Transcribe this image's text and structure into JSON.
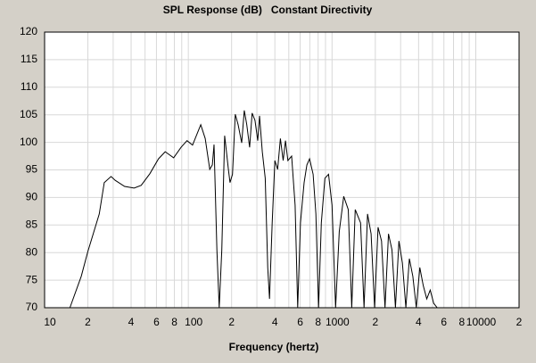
{
  "chart_data": {
    "type": "line",
    "title": "SPL Response (dB)   Constant Directivity",
    "x_label": "Frequency (hertz)",
    "x_scale": "log",
    "grid": true,
    "color": "#000000",
    "xlim": [
      10,
      20000
    ],
    "ylim": [
      70,
      120
    ],
    "yticks": [
      70,
      75,
      80,
      85,
      90,
      95,
      100,
      105,
      110,
      115,
      120
    ],
    "xticks": [
      10,
      {
        "value": 20,
        "label": "2"
      },
      {
        "value": 40,
        "label": "4"
      },
      {
        "value": 60,
        "label": "6"
      },
      {
        "value": 80,
        "label": "8"
      },
      100,
      {
        "value": 200,
        "label": "2"
      },
      {
        "value": 400,
        "label": "4"
      },
      {
        "value": 600,
        "label": "6"
      },
      {
        "value": 800,
        "label": "8"
      },
      1000,
      {
        "value": 2000,
        "label": "2"
      },
      {
        "value": 4000,
        "label": "4"
      },
      {
        "value": 6000,
        "label": "6"
      },
      {
        "value": 8000,
        "label": "8"
      },
      10000,
      {
        "value": 20000,
        "label": "2"
      }
    ],
    "xminorticks": [
      30,
      50,
      70,
      90,
      300,
      500,
      700,
      900,
      3000,
      5000,
      7000,
      9000
    ],
    "x": [
      15,
      18,
      20,
      24,
      26,
      29,
      31,
      36,
      42,
      47,
      54,
      62,
      69,
      79,
      89,
      98,
      107,
      122,
      131,
      141,
      147,
      151,
      158,
      164,
      171,
      179,
      190,
      195,
      203,
      212,
      222,
      235,
      245,
      255,
      267,
      278,
      291,
      304,
      313,
      327,
      343,
      357,
      367,
      383,
      400,
      418,
      437,
      457,
      474,
      493,
      523,
      553,
      577,
      603,
      639,
      668,
      697,
      738,
      772,
      806,
      842,
      892,
      945,
      1000,
      1059,
      1122,
      1206,
      1297,
      1371,
      1450,
      1578,
      1670,
      1765,
      1868,
      1975,
      2090,
      2210,
      2337,
      2470,
      2612,
      2760,
      2920,
      3086,
      3265,
      3450,
      3650,
      3857,
      4080,
      4310,
      4558,
      4820,
      5095,
      5390
    ],
    "values": [
      70,
      75.7,
      80.2,
      87,
      92.7,
      93.8,
      93.1,
      92,
      91.7,
      92.2,
      94.3,
      97,
      98.3,
      97.2,
      99.1,
      100.3,
      99.5,
      103.2,
      100.7,
      95.1,
      95.9,
      99.6,
      80.5,
      70,
      80.5,
      101.2,
      95.1,
      92.7,
      94.2,
      105.1,
      103.2,
      99.9,
      105.8,
      103.2,
      99.1,
      105.3,
      104,
      100.3,
      104.8,
      98.3,
      93.5,
      77.3,
      71.6,
      85.4,
      96.7,
      95.1,
      100.7,
      96.7,
      100.3,
      96.7,
      97.5,
      88.6,
      70,
      85.4,
      92.7,
      95.9,
      97,
      94.2,
      87,
      70,
      85.4,
      93.5,
      94.2,
      88.6,
      70,
      83.8,
      90.2,
      87.8,
      70,
      87.8,
      85.4,
      70,
      87,
      83.4,
      70,
      84.6,
      82.1,
      70,
      83.4,
      80.5,
      70,
      82.1,
      78.1,
      70,
      78.9,
      75.7,
      70,
      77.3,
      74,
      71.6,
      73.2,
      70.8,
      70
    ]
  }
}
